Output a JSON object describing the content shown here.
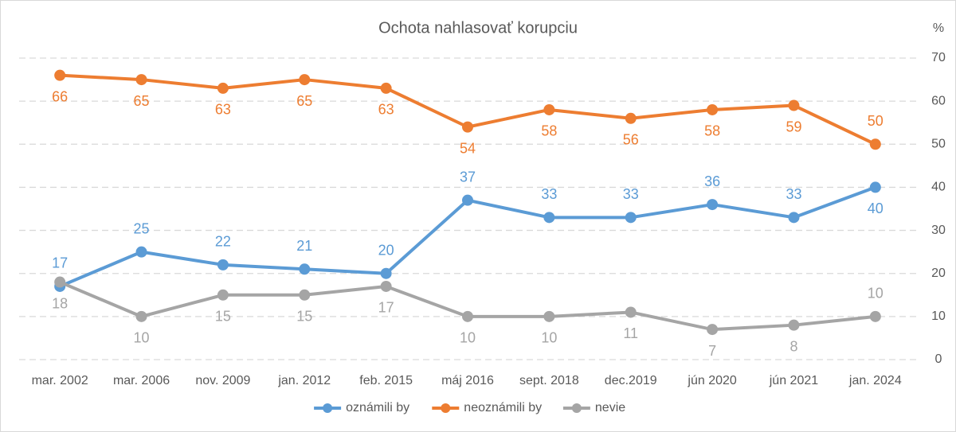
{
  "chart_data": {
    "type": "line",
    "title": "Ochota nahlasovať korupciu",
    "ylabel": "%",
    "categories": [
      "mar. 2002",
      "mar. 2006",
      "nov. 2009",
      "jan. 2012",
      "feb. 2015",
      "máj 2016",
      "sept. 2018",
      "dec.2019",
      "jún 2020",
      "jún 2021",
      "jan. 2024"
    ],
    "series": [
      {
        "name": "oznámili by",
        "color": "#5b9bd5",
        "values": [
          17,
          25,
          22,
          21,
          20,
          37,
          33,
          33,
          36,
          33,
          40
        ]
      },
      {
        "name": "neoznámili by",
        "color": "#ed7d31",
        "values": [
          66,
          65,
          63,
          65,
          63,
          54,
          58,
          56,
          58,
          59,
          50
        ]
      },
      {
        "name": "nevie",
        "color": "#a5a5a5",
        "values": [
          18,
          10,
          15,
          15,
          17,
          10,
          10,
          11,
          7,
          8,
          10
        ]
      }
    ],
    "ylim": [
      0,
      70
    ],
    "yticks": [
      0,
      10,
      20,
      30,
      40,
      50,
      60,
      70
    ],
    "grid": true,
    "legend": "bottom"
  }
}
